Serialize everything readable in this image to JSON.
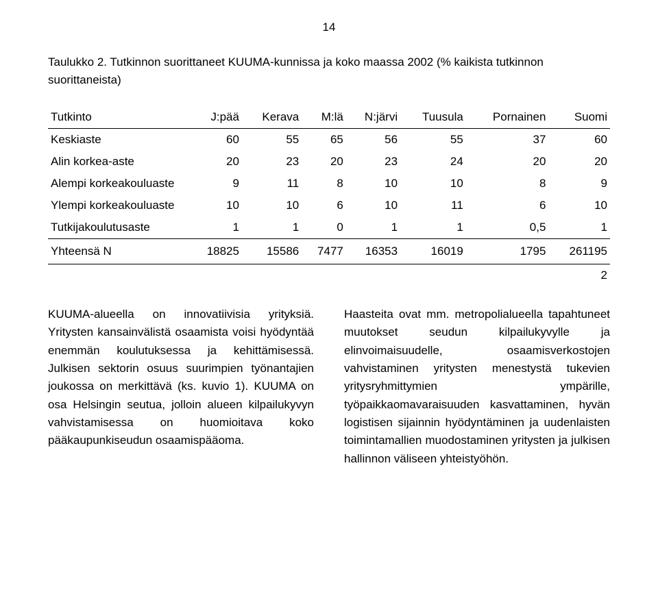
{
  "page_number": "14",
  "caption": "Taulukko 2. Tutkinnon suorittaneet KUUMA-kunnissa ja koko maassa 2002 (% kaikista tutkinnon suorittaneista)",
  "table": {
    "header_row1": [
      "Tutkinto",
      "J:pää",
      "Kerava",
      "M:lä",
      "N:järvi",
      "Tuusula",
      "Pornainen",
      "Suomi"
    ],
    "rows": [
      {
        "label": "Keskiaste",
        "v": [
          "60",
          "55",
          "65",
          "56",
          "55",
          "37",
          "60"
        ]
      },
      {
        "label": "Alin korkea-aste",
        "v": [
          "20",
          "23",
          "20",
          "23",
          "24",
          "20",
          "20"
        ]
      },
      {
        "label": "Alempi korkeakouluaste",
        "v": [
          "9",
          "11",
          "8",
          "10",
          "10",
          "8",
          "9"
        ]
      },
      {
        "label": "Ylempi korkeakouluaste",
        "v": [
          "10",
          "10",
          "6",
          "10",
          "11",
          "6",
          "10"
        ]
      },
      {
        "label": "Tutkijakoulutusaste",
        "v": [
          "1",
          "1",
          "0",
          "1",
          "1",
          "0,5",
          "1"
        ]
      }
    ],
    "totals": {
      "label": "Yhteensä N",
      "v": [
        "18825",
        "15586",
        "7477",
        "16353",
        "16019",
        "1795",
        "261195"
      ]
    },
    "trailing": "2"
  },
  "body": {
    "left": "KUUMA-alueella on innovatiivisia yrityksiä. Yritysten kansainvälistä osaamista voisi hyödyntää enemmän koulutuksessa ja kehittämisessä. Julkisen sektorin osuus suurimpien työnantajien joukossa on merkittävä (ks. kuvio 1). KUUMA on osa Helsingin seutua, jolloin alueen kilpailukyvyn vahvistamisessa on huomioitava koko pääkaupunkiseudun osaamispääoma.",
    "right": "Haasteita ovat mm. metropolialueella tapahtuneet muutokset seudun kilpailukyvylle ja elinvoimaisuudelle, osaamisverkostojen vahvistaminen yritysten menestystä tukevien yritysryhmittymien ympärille, työpaikkaomavaraisuuden kasvattaminen, hyvän logistisen sijainnin hyödyntäminen ja uudenlaisten toimintamallien muodostaminen yritysten ja julkisen hallinnon väliseen yhteistyöhön."
  }
}
